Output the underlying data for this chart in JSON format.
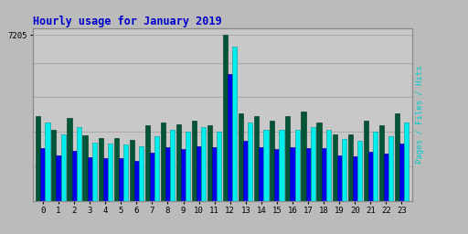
{
  "title": "Hourly usage for January 2019",
  "hours": [
    0,
    1,
    2,
    3,
    4,
    5,
    6,
    7,
    8,
    9,
    10,
    11,
    12,
    13,
    14,
    15,
    16,
    17,
    18,
    19,
    20,
    21,
    22,
    23
  ],
  "hits": [
    3400,
    2900,
    3200,
    2550,
    2500,
    2450,
    2400,
    2800,
    3100,
    3000,
    3200,
    3000,
    6700,
    3400,
    3100,
    3100,
    3100,
    3200,
    3100,
    2700,
    2600,
    3000,
    2800,
    3400
  ],
  "files": [
    2300,
    2000,
    2200,
    1900,
    1850,
    1850,
    1750,
    2100,
    2350,
    2250,
    2400,
    2350,
    5500,
    2600,
    2350,
    2250,
    2350,
    2300,
    2300,
    2000,
    1950,
    2150,
    2050,
    2500
  ],
  "pages": [
    3700,
    3100,
    3600,
    2850,
    2750,
    2750,
    2650,
    3300,
    3400,
    3350,
    3500,
    3300,
    7200,
    3800,
    3700,
    3500,
    3700,
    3900,
    3400,
    2900,
    2900,
    3500,
    3300,
    3800
  ],
  "ylim": [
    0,
    7500
  ],
  "ytick": 7205,
  "bar_width": 0.3,
  "hits_color": "#00EEEE",
  "files_color": "#0000EE",
  "pages_color": "#005535",
  "hits_edge": "#009999",
  "files_edge": "#000088",
  "pages_edge": "#003020",
  "bg_color": "#BBBBBB",
  "plot_bg": "#C8C8C8",
  "title_color": "#0000CC",
  "ylabel_color": "#00CCCC",
  "ylabel_text": "Pages / Files / Hits",
  "grid_color": "#AAAAAA",
  "figwidth": 5.12,
  "figheight": 2.56,
  "dpi": 100
}
